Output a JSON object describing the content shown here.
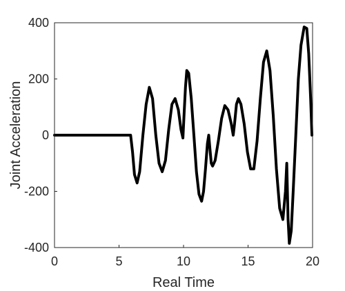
{
  "chart_data": {
    "type": "line",
    "title": "",
    "xlabel": "Real Time",
    "ylabel": "Joint Acceleration",
    "xlim": [
      0,
      20
    ],
    "ylim": [
      -400,
      400
    ],
    "xticks": [
      0,
      5,
      10,
      15,
      20
    ],
    "yticks": [
      -400,
      -200,
      0,
      200,
      400
    ],
    "xtick_labels": [
      "0",
      "5",
      "10",
      "15",
      "20"
    ],
    "ytick_labels": [
      "-400",
      "-200",
      "0",
      "200",
      "400"
    ],
    "grid": false,
    "line_color": "#000000",
    "series": [
      {
        "x": [
          0,
          5.9,
          6.05,
          6.2,
          6.4,
          6.6,
          6.85,
          7.1,
          7.35,
          7.6,
          7.85,
          8.1,
          8.35,
          8.6,
          8.85,
          9.1,
          9.35,
          9.6,
          9.8,
          9.95,
          10.05,
          10.15,
          10.25,
          10.4,
          10.6,
          10.8,
          11.0,
          11.2,
          11.4,
          11.55,
          11.7,
          11.85,
          11.95,
          12.05,
          12.15,
          12.25,
          12.45,
          12.7,
          12.95,
          13.2,
          13.45,
          13.7,
          13.85,
          13.95,
          14.1,
          14.25,
          14.45,
          14.7,
          14.95,
          15.2,
          15.45,
          15.7,
          15.95,
          16.2,
          16.45,
          16.7,
          16.95,
          17.2,
          17.45,
          17.7,
          17.9,
          18.0,
          18.1,
          18.2,
          18.35,
          18.5,
          18.7,
          18.9,
          19.1,
          19.35,
          19.55,
          19.7,
          19.85,
          19.95
        ],
        "y": [
          0,
          0,
          -60,
          -140,
          -170,
          -130,
          0,
          110,
          170,
          130,
          0,
          -100,
          -130,
          -90,
          20,
          110,
          130,
          90,
          20,
          -10,
          80,
          170,
          230,
          220,
          130,
          0,
          -130,
          -210,
          -235,
          -200,
          -120,
          -30,
          0,
          -50,
          -100,
          -110,
          -90,
          -20,
          60,
          105,
          90,
          40,
          0,
          40,
          110,
          130,
          110,
          40,
          -60,
          -120,
          -120,
          -20,
          130,
          260,
          300,
          230,
          70,
          -120,
          -260,
          -300,
          -200,
          -100,
          -300,
          -385,
          -340,
          -200,
          0,
          200,
          320,
          385,
          380,
          290,
          130,
          0
        ]
      }
    ]
  }
}
